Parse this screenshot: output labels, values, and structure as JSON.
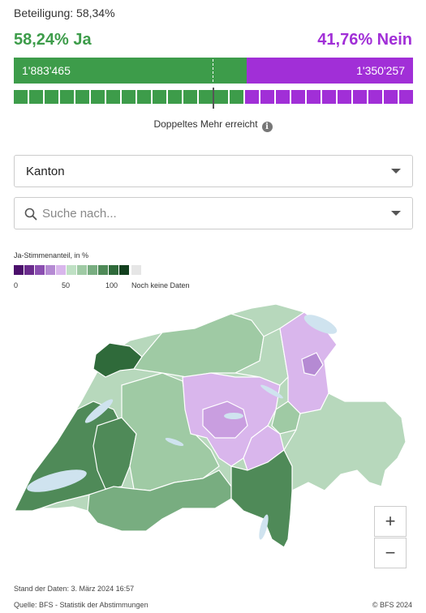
{
  "turnout": "Beteiligung: 58,34%",
  "result": {
    "yes_percent": "58,24% Ja",
    "no_percent": "41,76% Nein",
    "yes_share": 58.24,
    "yes_votes": "1'883'465",
    "no_votes": "1'350'257",
    "yes_color": "#3d9c4a",
    "no_color": "#a12fd7"
  },
  "cantons_bar": {
    "yes_count": 15,
    "no_count": 11
  },
  "majority_text": "Doppeltes Mehr erreicht",
  "info_icon": "info-icon",
  "level_select": {
    "value": "Kanton"
  },
  "search": {
    "placeholder": "Suche nach..."
  },
  "legend": {
    "title": "Ja-Stimmenanteil, in %",
    "colors": [
      "#4b0f6b",
      "#6a2b8c",
      "#8b4fb1",
      "#b58ad3",
      "#d9b6ec",
      "#bfe0c4",
      "#9fcaa4",
      "#78ad80",
      "#4f8a58",
      "#2f6a3a",
      "#123f1e"
    ],
    "label_0": "0",
    "label_50": "50",
    "label_100": "100",
    "no_data_label": "Noch keine Daten",
    "no_data_color": "#e6e6e6"
  },
  "map_colors": {
    "lake": "#cfe3ef",
    "border": "#ffffff"
  },
  "zoom": {
    "in": "+",
    "out": "−"
  },
  "footer": {
    "data_as_of": "Stand der Daten: 3. März 2024 16:57",
    "source": "Quelle: BFS - Statistik der Abstimmungen",
    "copyright": "© BFS 2024"
  }
}
